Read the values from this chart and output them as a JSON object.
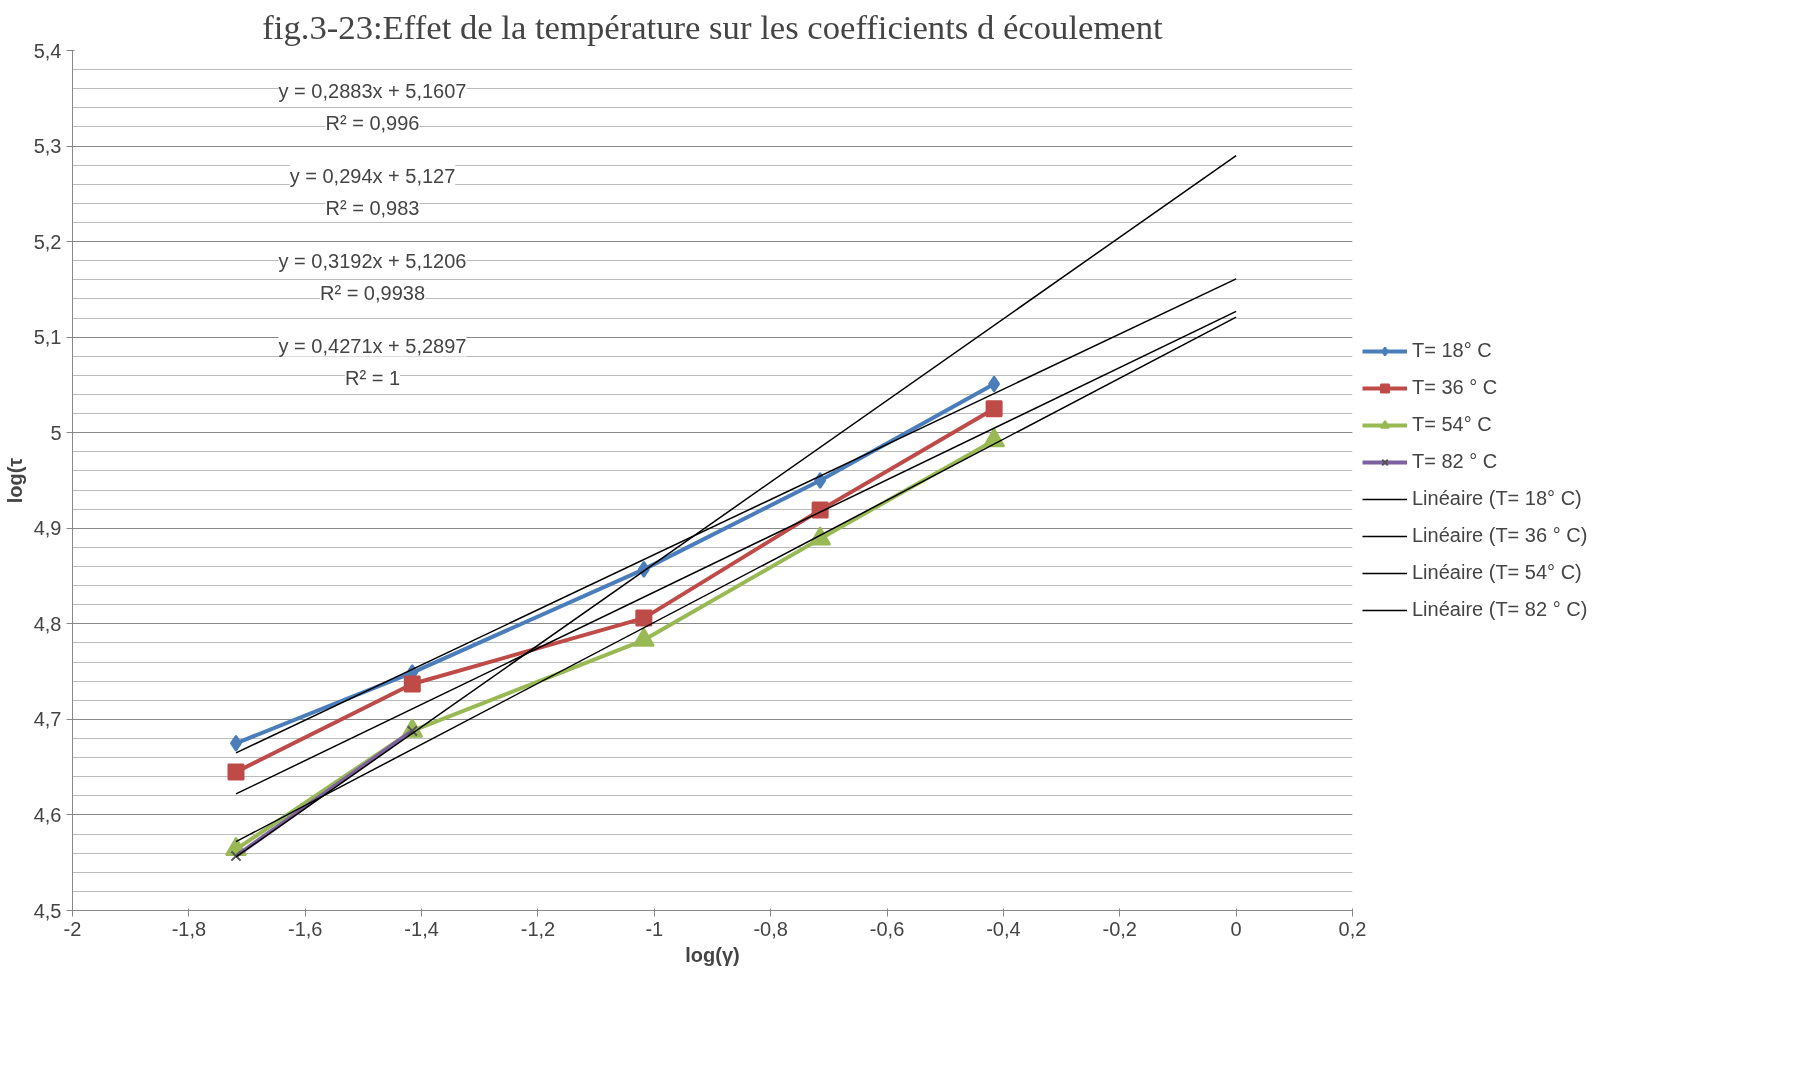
{
  "chart_data": {
    "type": "line",
    "title": "fig.3-23:Effet de la température sur les coefficients d écoulement",
    "xlabel": "log(γ)",
    "ylabel": "log(τ",
    "xlim": [
      -2,
      0.2
    ],
    "xticks": [
      {
        "value": -2,
        "label": "-2"
      },
      {
        "value": -1.8,
        "label": "-1,8"
      },
      {
        "value": -1.6,
        "label": "-1,6"
      },
      {
        "value": -1.4,
        "label": "-1,4"
      },
      {
        "value": -1.2,
        "label": "-1,2"
      },
      {
        "value": -1,
        "label": "-1"
      },
      {
        "value": -0.8,
        "label": "-0,8"
      },
      {
        "value": -0.6,
        "label": "-0,6"
      },
      {
        "value": -0.4,
        "label": "-0,4"
      },
      {
        "value": -0.2,
        "label": "-0,2"
      },
      {
        "value": 0,
        "label": "0"
      },
      {
        "value": 0.2,
        "label": "0,2"
      }
    ],
    "ylim": [
      4.5,
      5.4
    ],
    "yticks": [
      {
        "value": 4.5,
        "label": "4,5"
      },
      {
        "value": 4.6,
        "label": "4,6"
      },
      {
        "value": 4.7,
        "label": "4,7"
      },
      {
        "value": 4.8,
        "label": "4,8"
      },
      {
        "value": 4.9,
        "label": "4,9"
      },
      {
        "value": 5,
        "label": "5"
      },
      {
        "value": 5.1,
        "label": "5,1"
      },
      {
        "value": 5.2,
        "label": "5,2"
      },
      {
        "value": 5.3,
        "label": "5,3"
      },
      {
        "value": 5.4,
        "label": "5,4"
      }
    ],
    "grid": "y",
    "legend": "right",
    "series": [
      {
        "name": "T= 18° C",
        "color": "#4a7ebb",
        "marker": "diamond",
        "x": [
          -1.719,
          -1.416,
          -1.018,
          -0.715,
          -0.416
        ],
        "values": [
          4.675,
          4.749,
          4.857,
          4.95,
          5.051
        ]
      },
      {
        "name": "T= 36 ° C",
        "color": "#be4b48",
        "marker": "square",
        "x": [
          -1.719,
          -1.416,
          -1.018,
          -0.715,
          -0.416
        ],
        "values": [
          4.645,
          4.737,
          4.806,
          4.919,
          5.025
        ]
      },
      {
        "name": "T= 54° C",
        "color": "#98b954",
        "marker": "triangle",
        "x": [
          -1.719,
          -1.416,
          -1.018,
          -0.715,
          -0.416
        ],
        "values": [
          4.564,
          4.688,
          4.783,
          4.889,
          4.992
        ]
      },
      {
        "name": "T= 82 ° C",
        "color": "#7d60a0",
        "marker": "cross",
        "x": [
          -1.719,
          -1.416
        ],
        "values": [
          4.557,
          4.688
        ]
      },
      {
        "name": "Linéaire (T= 18° C)",
        "color": "#000000",
        "marker": "none",
        "x": [
          -1.719,
          0
        ],
        "values": [
          4.665,
          5.161
        ]
      },
      {
        "name": "Linéaire (T= 36 ° C)",
        "color": "#000000",
        "marker": "none",
        "x": [
          -1.719,
          0
        ],
        "values": [
          4.622,
          5.127
        ]
      },
      {
        "name": "Linéaire (T= 54° C)",
        "color": "#000000",
        "marker": "none",
        "x": [
          -1.719,
          0
        ],
        "values": [
          4.572,
          5.121
        ]
      },
      {
        "name": "Linéaire (T= 82 ° C)",
        "color": "#000000",
        "marker": "none",
        "x": [
          -1.719,
          0
        ],
        "values": [
          4.556,
          5.29
        ]
      }
    ],
    "annotations": [
      "y = 0,2883x + 5,1607",
      "R² = 0,996",
      "y = 0,294x + 5,127",
      "R² = 0,983",
      "y = 0,3192x + 5,1206",
      "R² = 0,9938",
      "y = 0,4271x + 5,2897",
      "R² = 1"
    ]
  }
}
